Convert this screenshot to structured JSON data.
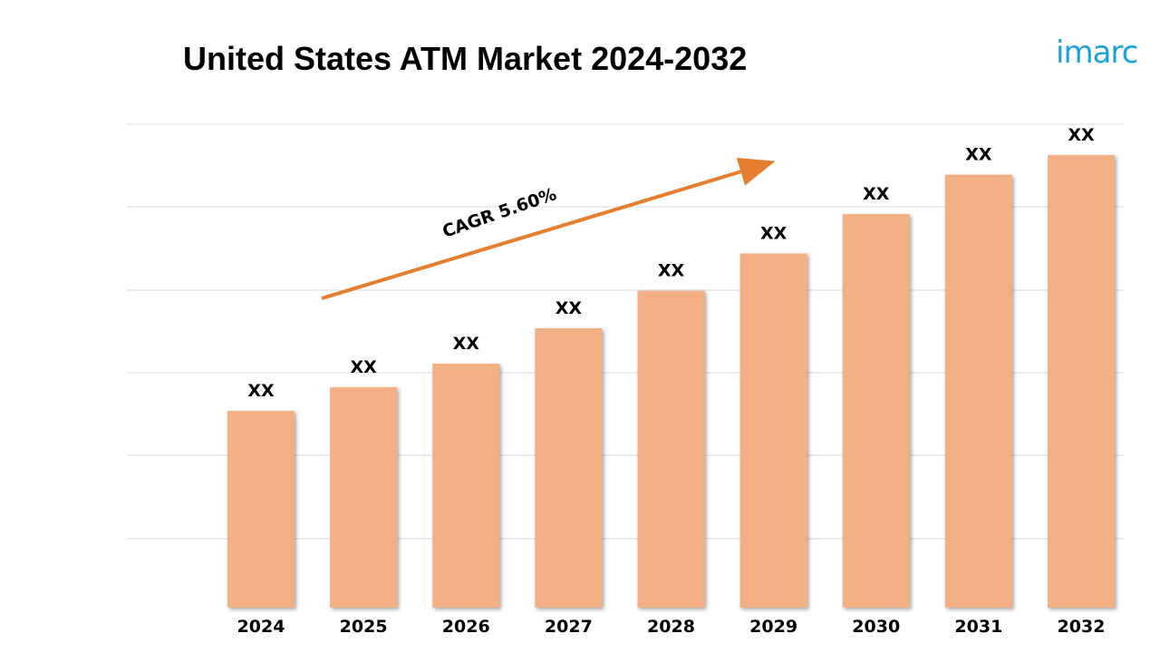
{
  "title": "United States ATM Market 2024-2032",
  "logo": {
    "text": "imarc",
    "color": "#1aa3d9",
    "accent_color": "#e67e30"
  },
  "colors": {
    "bar": "#f2b084",
    "arrow": "#e67e30",
    "gridline": "#d9d9d9"
  },
  "chart_data": {
    "type": "bar",
    "title": "United States ATM Market 2024-2032",
    "categories": [
      "2024",
      "2025",
      "2026",
      "2027",
      "2028",
      "2029",
      "2030",
      "2031",
      "2032"
    ],
    "values": [
      100,
      112,
      124,
      142,
      161,
      180,
      200,
      220,
      230
    ],
    "data_labels": [
      "XX",
      "XX",
      "XX",
      "XX",
      "XX",
      "XX",
      "XX",
      "XX",
      "XX"
    ],
    "ylim": [
      0,
      230
    ],
    "grid": true,
    "annotation": {
      "text": "CAGR 5.60%",
      "type": "trend-arrow"
    }
  }
}
